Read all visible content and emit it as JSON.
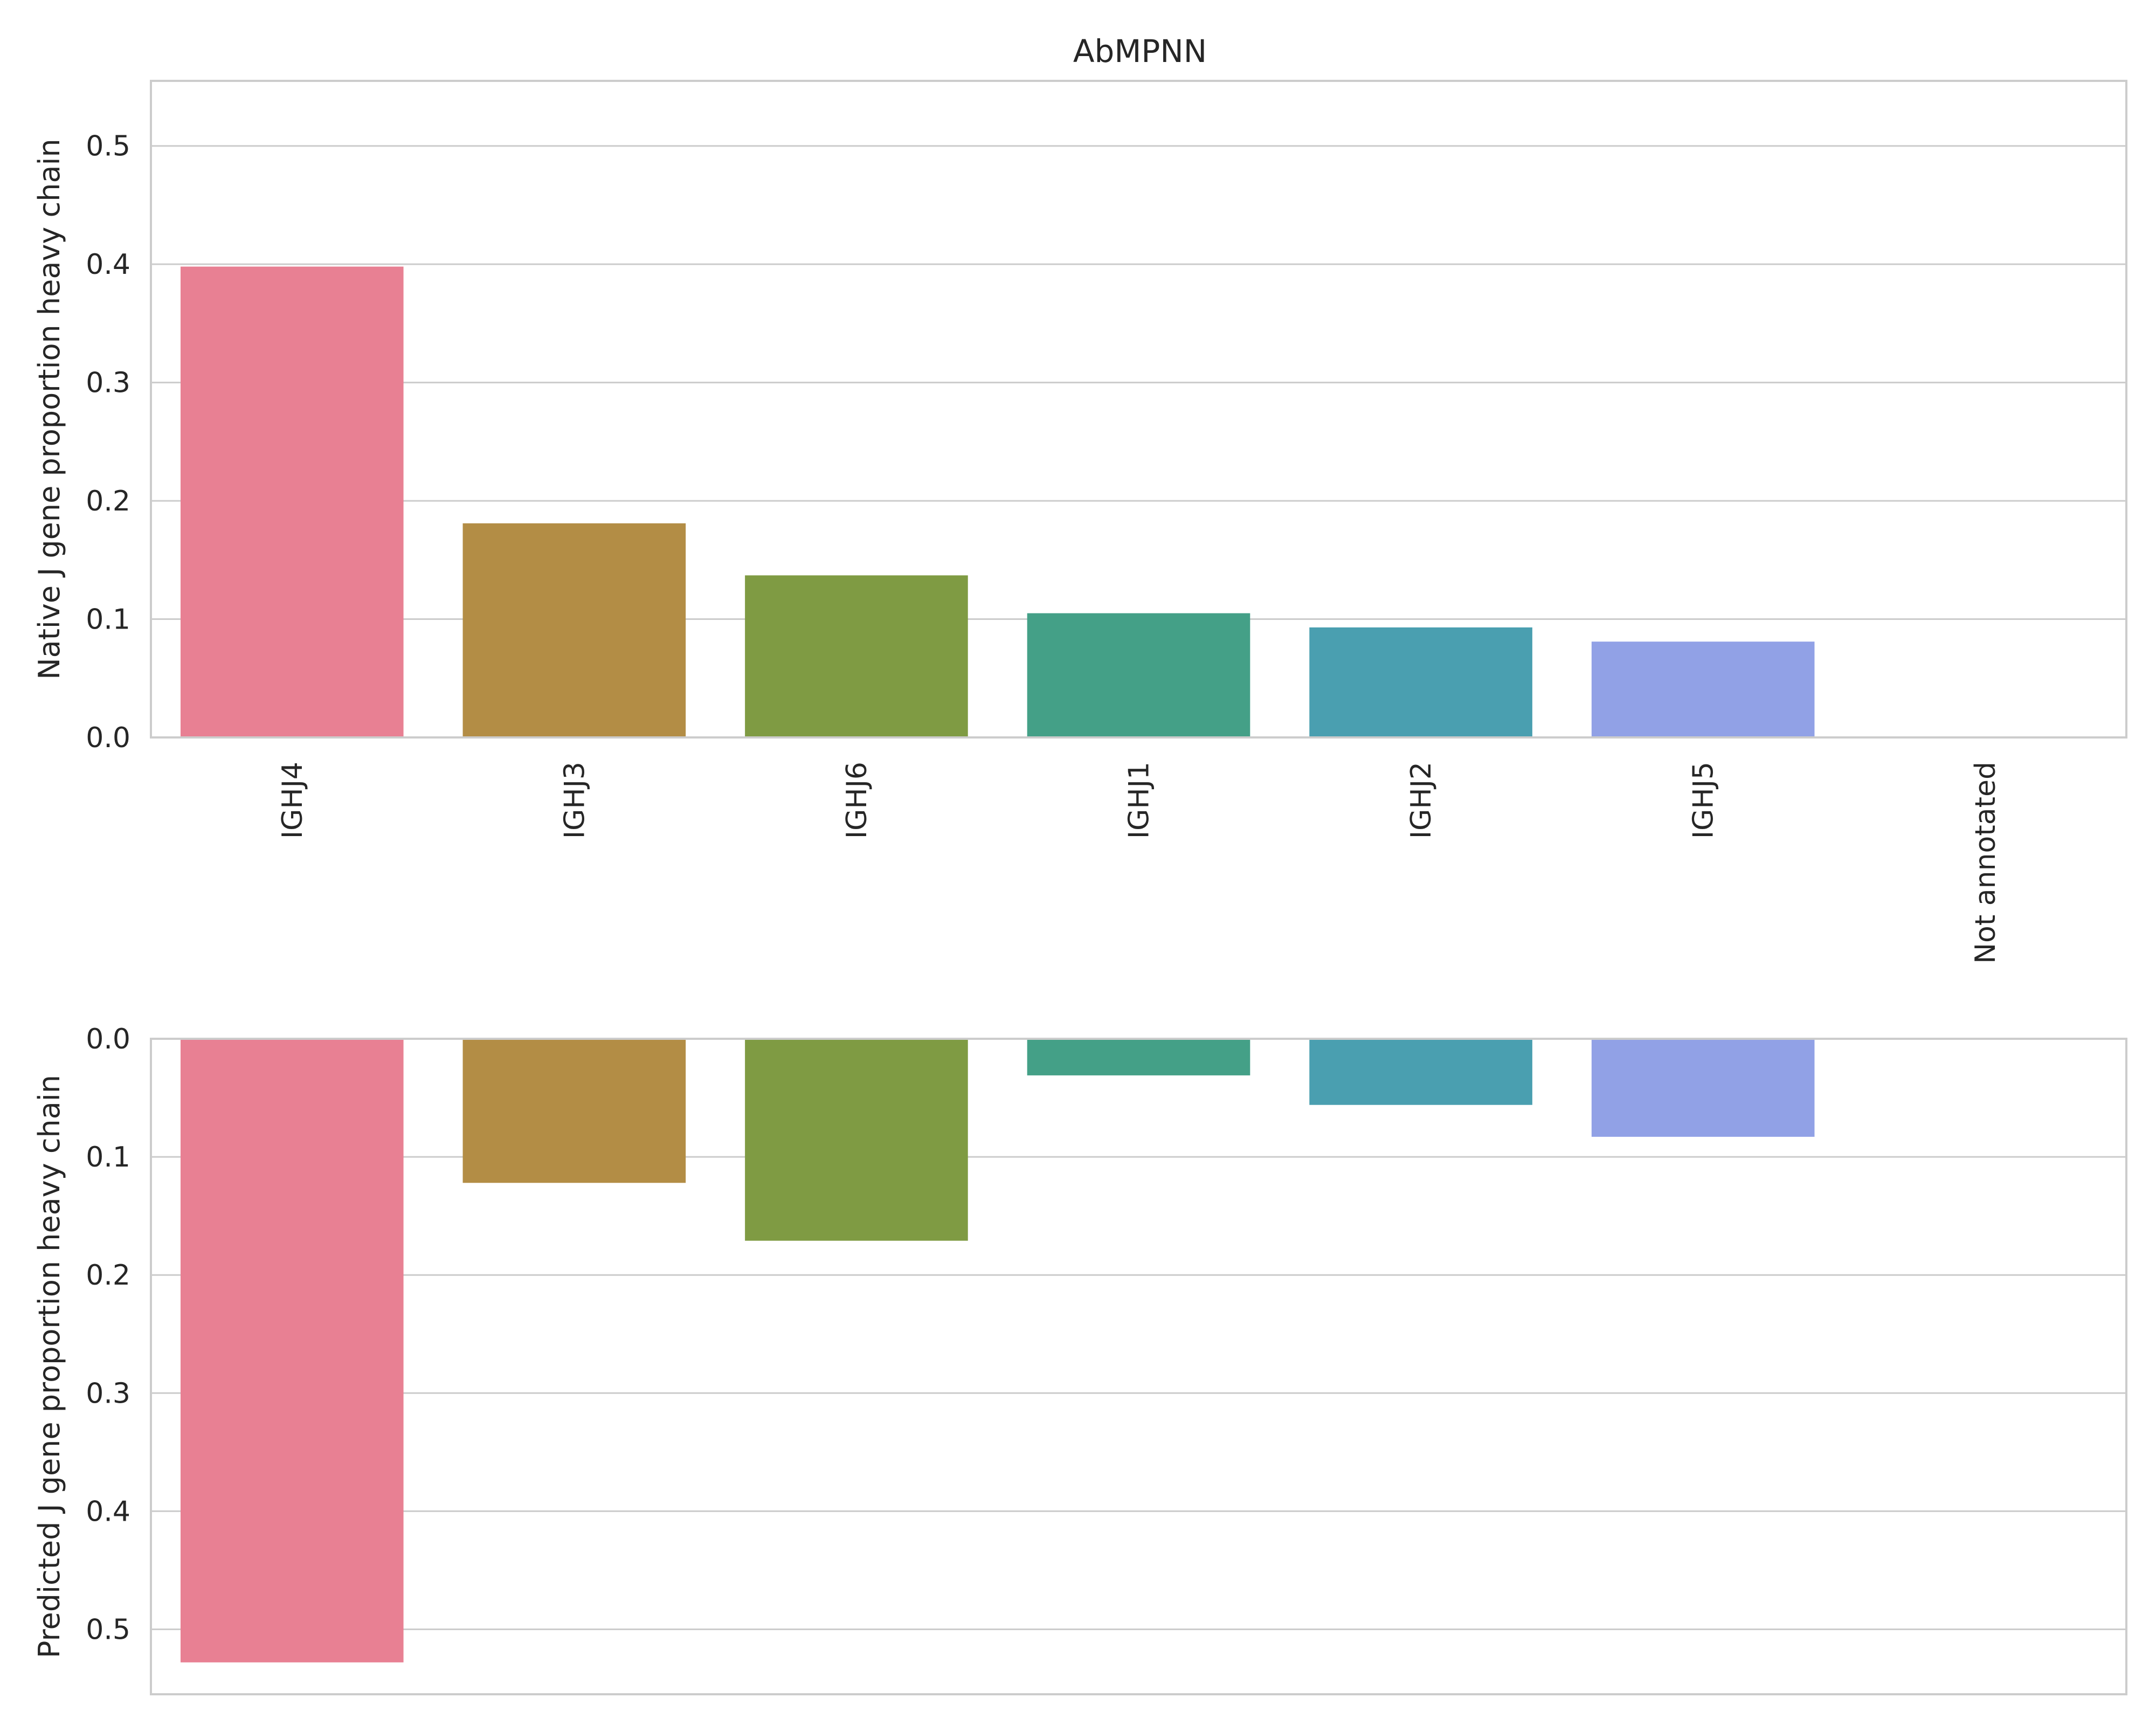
{
  "chart_data": [
    {
      "type": "bar",
      "title": "AbMPNN",
      "ylabel": "Native J gene proportion heavy chain",
      "xlabel": "",
      "categories": [
        "IGHJ4",
        "IGHJ3",
        "IGHJ6",
        "IGHJ1",
        "IGHJ2",
        "IGHJ5",
        "Not annotated"
      ],
      "values": [
        0.398,
        0.181,
        0.137,
        0.105,
        0.093,
        0.081,
        0.0
      ],
      "ylim": [
        0,
        0.555
      ],
      "yticks": [
        "0.0",
        "0.1",
        "0.2",
        "0.3",
        "0.4",
        "0.5"
      ],
      "grid": true,
      "colors": [
        "#e88093",
        "#b38d45",
        "#7f9b43",
        "#44a087",
        "#4a9fb0",
        "#91a1e6",
        "#e68ee6"
      ]
    },
    {
      "type": "bar",
      "title": "",
      "ylabel": "Predicted J gene proportion heavy chain",
      "xlabel": "",
      "categories": [
        "IGHJ4",
        "IGHJ3",
        "IGHJ6",
        "IGHJ1",
        "IGHJ2",
        "IGHJ5",
        "Not annotated"
      ],
      "values": [
        0.528,
        0.122,
        0.171,
        0.031,
        0.056,
        0.083,
        0.0
      ],
      "ylim": [
        0,
        0.555
      ],
      "y_inverted": true,
      "yticks": [
        "0.0",
        "0.1",
        "0.2",
        "0.3",
        "0.4",
        "0.5"
      ],
      "grid": true,
      "colors": [
        "#e88093",
        "#b38d45",
        "#7f9b43",
        "#44a087",
        "#4a9fb0",
        "#91a1e6",
        "#e68ee6"
      ]
    }
  ]
}
